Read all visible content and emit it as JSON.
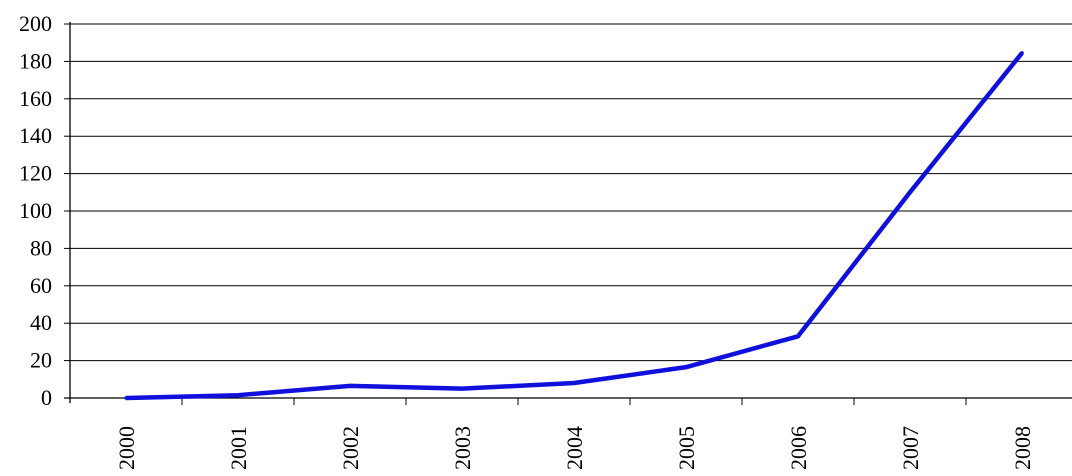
{
  "chart_data": {
    "type": "line",
    "title": "",
    "xlabel": "",
    "ylabel": "",
    "categories": [
      "2000",
      "2001",
      "2002",
      "2003",
      "2004",
      "2005",
      "2006",
      "2007",
      "2008"
    ],
    "series": [
      {
        "values": [
          0,
          1.5,
          6.5,
          5,
          8,
          16.5,
          33,
          110,
          184.5
        ],
        "color": "#1010dd"
      }
    ],
    "ylim": [
      0,
      200
    ],
    "yticks": [
      0,
      20,
      40,
      60,
      80,
      100,
      120,
      140,
      160,
      180,
      200
    ],
    "ytick_labels": [
      "0",
      "20",
      "40",
      "60",
      "80",
      "100",
      "120",
      "140",
      "160",
      "180",
      "200"
    ],
    "grid": true,
    "legend": "none"
  }
}
